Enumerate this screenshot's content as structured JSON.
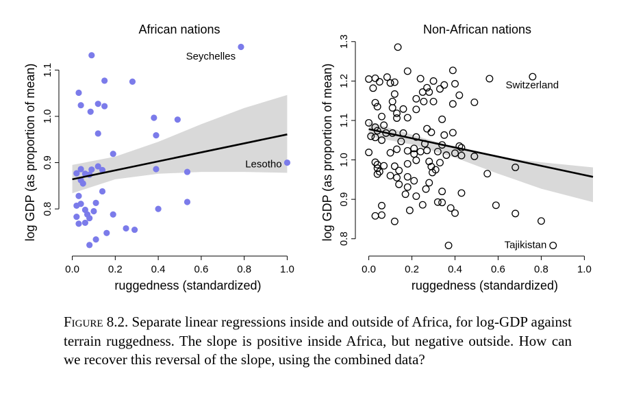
{
  "chart_data": [
    {
      "type": "scatter",
      "title": "African nations",
      "xlabel": "ruggedness (standardized)",
      "ylabel": "log GDP (as proportion of mean)",
      "xlim": [
        -0.04,
        1.04
      ],
      "ylim": [
        0.71,
        1.17
      ],
      "xticks": [
        0.0,
        0.2,
        0.4,
        0.6,
        0.8,
        1.0
      ],
      "xtick_labels": [
        "0.0",
        "0.2",
        "0.4",
        "0.6",
        "0.8",
        "1.0"
      ],
      "yticks": [
        0.8,
        0.9,
        1.0,
        1.1
      ],
      "ytick_labels": [
        "0.8",
        "0.9",
        "1.0",
        "1.1"
      ],
      "marker": "filled",
      "point_color": "#7b7bea",
      "line_color": "#000000",
      "band_color": "#d9d9d9",
      "regression": {
        "x": [
          0.0,
          1.0
        ],
        "y": [
          0.864,
          0.961
        ]
      },
      "ci_band": {
        "x": [
          0.0,
          0.2,
          0.4,
          0.6,
          0.8,
          1.0
        ],
        "upper": [
          0.895,
          0.913,
          0.945,
          0.983,
          1.018,
          1.046
        ],
        "lower": [
          0.834,
          0.864,
          0.876,
          0.88,
          0.88,
          0.878
        ]
      },
      "annotations": [
        {
          "text": "Seychelles",
          "x": 0.785,
          "y": 1.15,
          "anchor": "end",
          "label_x": 0.76,
          "label_y": 1.13
        },
        {
          "text": "Lesotho",
          "x": 1.0,
          "y": 0.9,
          "anchor": "end",
          "label_x": 0.975,
          "label_y": 0.897
        }
      ],
      "points": [
        {
          "x": 0.09,
          "y": 1.132
        },
        {
          "x": 0.785,
          "y": 1.15
        },
        {
          "x": 0.15,
          "y": 1.077
        },
        {
          "x": 0.28,
          "y": 1.075
        },
        {
          "x": 0.03,
          "y": 1.051
        },
        {
          "x": 0.12,
          "y": 1.027
        },
        {
          "x": 0.04,
          "y": 1.024
        },
        {
          "x": 0.15,
          "y": 1.022
        },
        {
          "x": 0.085,
          "y": 1.01
        },
        {
          "x": 0.38,
          "y": 0.997
        },
        {
          "x": 0.49,
          "y": 0.993
        },
        {
          "x": 0.12,
          "y": 0.963
        },
        {
          "x": 0.39,
          "y": 0.959
        },
        {
          "x": 0.19,
          "y": 0.919
        },
        {
          "x": 1.0,
          "y": 0.9
        },
        {
          "x": 0.12,
          "y": 0.892
        },
        {
          "x": 0.04,
          "y": 0.886
        },
        {
          "x": 0.14,
          "y": 0.884
        },
        {
          "x": 0.09,
          "y": 0.885
        },
        {
          "x": 0.39,
          "y": 0.886
        },
        {
          "x": 0.535,
          "y": 0.88
        },
        {
          "x": 0.02,
          "y": 0.877
        },
        {
          "x": 0.06,
          "y": 0.876
        },
        {
          "x": 0.08,
          "y": 0.874
        },
        {
          "x": 0.04,
          "y": 0.862
        },
        {
          "x": 0.05,
          "y": 0.855
        },
        {
          "x": 0.14,
          "y": 0.838
        },
        {
          "x": 0.03,
          "y": 0.828
        },
        {
          "x": 0.535,
          "y": 0.815
        },
        {
          "x": 0.11,
          "y": 0.813
        },
        {
          "x": 0.04,
          "y": 0.811
        },
        {
          "x": 0.02,
          "y": 0.807
        },
        {
          "x": 0.4,
          "y": 0.8
        },
        {
          "x": 0.06,
          "y": 0.798
        },
        {
          "x": 0.1,
          "y": 0.795
        },
        {
          "x": 0.07,
          "y": 0.788
        },
        {
          "x": 0.19,
          "y": 0.788
        },
        {
          "x": 0.02,
          "y": 0.783
        },
        {
          "x": 0.08,
          "y": 0.78
        },
        {
          "x": 0.06,
          "y": 0.77
        },
        {
          "x": 0.03,
          "y": 0.768
        },
        {
          "x": 0.25,
          "y": 0.758
        },
        {
          "x": 0.29,
          "y": 0.755
        },
        {
          "x": 0.16,
          "y": 0.748
        },
        {
          "x": 0.11,
          "y": 0.734
        },
        {
          "x": 0.08,
          "y": 0.722
        }
      ]
    },
    {
      "type": "scatter",
      "title": "Non-African nations",
      "xlabel": "ruggedness (standardized)",
      "ylabel": "log GDP (as proportion of mean)",
      "xlim": [
        -0.04,
        1.04
      ],
      "ylim": [
        0.77,
        1.31
      ],
      "xticks": [
        0.0,
        0.2,
        0.4,
        0.6,
        0.8,
        1.0
      ],
      "xtick_labels": [
        "0.0",
        "0.2",
        "0.4",
        "0.6",
        "0.8",
        "1.0"
      ],
      "yticks": [
        0.8,
        0.9,
        1.0,
        1.1,
        1.2,
        1.3
      ],
      "ytick_labels": [
        "0.8",
        "0.9",
        "1.0",
        "1.1",
        "1.2",
        "1.3"
      ],
      "marker": "open",
      "point_color": "#000000",
      "line_color": "#000000",
      "band_color": "#d9d9d9",
      "regression": {
        "x": [
          0.0,
          1.04
        ],
        "y": [
          1.078,
          0.957
        ]
      },
      "ci_band": {
        "x": [
          0.0,
          0.2,
          0.4,
          0.6,
          0.8,
          1.04
        ],
        "upper": [
          1.097,
          1.064,
          1.032,
          1.007,
          0.994,
          0.981
        ],
        "lower": [
          1.06,
          1.039,
          1.006,
          0.965,
          0.927,
          0.893
        ]
      },
      "annotations": [
        {
          "text": "Switzerland",
          "x": 0.76,
          "y": 1.211,
          "anchor": "start",
          "label_x": 0.635,
          "label_y": 1.19
        },
        {
          "text": "Tajikistan",
          "x": 0.855,
          "y": 0.783,
          "anchor": "end",
          "label_x": 0.825,
          "label_y": 0.785
        }
      ],
      "points": [
        {
          "x": 0.135,
          "y": 1.286
        },
        {
          "x": 0.18,
          "y": 1.225
        },
        {
          "x": 0.39,
          "y": 1.227
        },
        {
          "x": 0.76,
          "y": 1.211
        },
        {
          "x": 0.56,
          "y": 1.206
        },
        {
          "x": 0.0,
          "y": 1.205
        },
        {
          "x": 0.03,
          "y": 1.207
        },
        {
          "x": 0.05,
          "y": 1.198
        },
        {
          "x": 0.085,
          "y": 1.21
        },
        {
          "x": 0.1,
          "y": 1.195
        },
        {
          "x": 0.12,
          "y": 1.197
        },
        {
          "x": 0.24,
          "y": 1.206
        },
        {
          "x": 0.3,
          "y": 1.2
        },
        {
          "x": 0.35,
          "y": 1.19
        },
        {
          "x": 0.4,
          "y": 1.193
        },
        {
          "x": 0.02,
          "y": 1.182
        },
        {
          "x": 0.27,
          "y": 1.183
        },
        {
          "x": 0.25,
          "y": 1.172
        },
        {
          "x": 0.28,
          "y": 1.172
        },
        {
          "x": 0.33,
          "y": 1.18
        },
        {
          "x": 0.42,
          "y": 1.164
        },
        {
          "x": 0.12,
          "y": 1.167
        },
        {
          "x": 0.22,
          "y": 1.155
        },
        {
          "x": 0.255,
          "y": 1.148
        },
        {
          "x": 0.3,
          "y": 1.148
        },
        {
          "x": 0.49,
          "y": 1.146
        },
        {
          "x": 0.39,
          "y": 1.142
        },
        {
          "x": 0.03,
          "y": 1.145
        },
        {
          "x": 0.11,
          "y": 1.148
        },
        {
          "x": 0.04,
          "y": 1.135
        },
        {
          "x": 0.11,
          "y": 1.132
        },
        {
          "x": 0.16,
          "y": 1.129
        },
        {
          "x": 0.22,
          "y": 1.128
        },
        {
          "x": 0.13,
          "y": 1.118
        },
        {
          "x": 0.06,
          "y": 1.11
        },
        {
          "x": 0.13,
          "y": 1.106
        },
        {
          "x": 0.18,
          "y": 1.107
        },
        {
          "x": 0.34,
          "y": 1.103
        },
        {
          "x": 0.0,
          "y": 1.094
        },
        {
          "x": 0.07,
          "y": 1.088
        },
        {
          "x": 0.03,
          "y": 1.083
        },
        {
          "x": 0.27,
          "y": 1.079
        },
        {
          "x": 0.04,
          "y": 1.074
        },
        {
          "x": 0.08,
          "y": 1.068
        },
        {
          "x": 0.11,
          "y": 1.068
        },
        {
          "x": 0.16,
          "y": 1.068
        },
        {
          "x": 0.29,
          "y": 1.07
        },
        {
          "x": 0.39,
          "y": 1.069
        },
        {
          "x": 0.35,
          "y": 1.063
        },
        {
          "x": 0.01,
          "y": 1.06
        },
        {
          "x": 0.03,
          "y": 1.057
        },
        {
          "x": 0.22,
          "y": 1.058
        },
        {
          "x": 0.06,
          "y": 1.05
        },
        {
          "x": 0.15,
          "y": 1.047
        },
        {
          "x": 0.26,
          "y": 1.041
        },
        {
          "x": 0.34,
          "y": 1.038
        },
        {
          "x": 0.42,
          "y": 1.035
        },
        {
          "x": 0.43,
          "y": 1.031
        },
        {
          "x": 0.21,
          "y": 1.029
        },
        {
          "x": 0.13,
          "y": 1.027
        },
        {
          "x": 0.27,
          "y": 1.024
        },
        {
          "x": 0.18,
          "y": 1.023
        },
        {
          "x": 0.24,
          "y": 1.021
        },
        {
          "x": 0.32,
          "y": 1.021
        },
        {
          "x": 0.4,
          "y": 1.017
        },
        {
          "x": 0.0,
          "y": 1.019
        },
        {
          "x": 0.1,
          "y": 1.018
        },
        {
          "x": 0.21,
          "y": 1.015
        },
        {
          "x": 0.36,
          "y": 1.012
        },
        {
          "x": 0.43,
          "y": 1.011
        },
        {
          "x": 0.49,
          "y": 1.009
        },
        {
          "x": 0.22,
          "y": 0.999
        },
        {
          "x": 0.28,
          "y": 0.996
        },
        {
          "x": 0.03,
          "y": 0.994
        },
        {
          "x": 0.33,
          "y": 0.993
        },
        {
          "x": 0.18,
          "y": 0.99
        },
        {
          "x": 0.04,
          "y": 0.988
        },
        {
          "x": 0.07,
          "y": 0.985
        },
        {
          "x": 0.12,
          "y": 0.984
        },
        {
          "x": 0.29,
          "y": 0.983
        },
        {
          "x": 0.04,
          "y": 0.979
        },
        {
          "x": 0.68,
          "y": 0.981
        },
        {
          "x": 0.31,
          "y": 0.975
        },
        {
          "x": 0.14,
          "y": 0.973
        },
        {
          "x": 0.05,
          "y": 0.97
        },
        {
          "x": 0.295,
          "y": 0.968
        },
        {
          "x": 0.55,
          "y": 0.965
        },
        {
          "x": 0.04,
          "y": 0.964
        },
        {
          "x": 0.1,
          "y": 0.96
        },
        {
          "x": 0.18,
          "y": 0.957
        },
        {
          "x": 0.13,
          "y": 0.955
        },
        {
          "x": 0.21,
          "y": 0.947
        },
        {
          "x": 0.28,
          "y": 0.942
        },
        {
          "x": 0.14,
          "y": 0.938
        },
        {
          "x": 0.18,
          "y": 0.931
        },
        {
          "x": 0.265,
          "y": 0.926
        },
        {
          "x": 0.34,
          "y": 0.92
        },
        {
          "x": 0.43,
          "y": 0.916
        },
        {
          "x": 0.17,
          "y": 0.913
        },
        {
          "x": 0.22,
          "y": 0.908
        },
        {
          "x": 0.32,
          "y": 0.893
        },
        {
          "x": 0.34,
          "y": 0.892
        },
        {
          "x": 0.06,
          "y": 0.884
        },
        {
          "x": 0.25,
          "y": 0.886
        },
        {
          "x": 0.59,
          "y": 0.885
        },
        {
          "x": 0.38,
          "y": 0.878
        },
        {
          "x": 0.19,
          "y": 0.872
        },
        {
          "x": 0.4,
          "y": 0.865
        },
        {
          "x": 0.68,
          "y": 0.864
        },
        {
          "x": 0.03,
          "y": 0.858
        },
        {
          "x": 0.06,
          "y": 0.86
        },
        {
          "x": 0.12,
          "y": 0.844
        },
        {
          "x": 0.8,
          "y": 0.845
        },
        {
          "x": 0.37,
          "y": 0.783
        },
        {
          "x": 0.855,
          "y": 0.783
        }
      ]
    }
  ],
  "caption": {
    "label": "Figure 8.2.",
    "text": "Separate linear regressions inside and outside of Africa, for log-GDP against terrain ruggedness. The slope is positive inside Africa, but negative outside. How can we recover this reversal of the slope, using the combined data?"
  }
}
